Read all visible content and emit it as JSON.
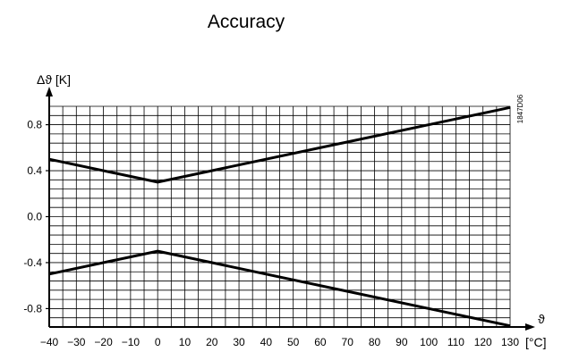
{
  "chart_data": {
    "type": "line",
    "title": "Accuracy",
    "ylabel": "Δϑ [K]",
    "xlabel": "ϑ",
    "xunit": "[°C]",
    "code": "1847D06",
    "xlim": [
      -40,
      130
    ],
    "ylim": [
      -0.96,
      0.96
    ],
    "x_ticks": [
      -40,
      -30,
      -20,
      -10,
      0,
      10,
      20,
      30,
      40,
      50,
      60,
      70,
      80,
      90,
      100,
      110,
      120,
      130
    ],
    "x_tick_labels": [
      "−40",
      "−30",
      "−20",
      "−10",
      "0",
      "10",
      "20",
      "30",
      "40",
      "50",
      "60",
      "70",
      "80",
      "90",
      "100",
      "110",
      "120",
      "130"
    ],
    "y_ticks": [
      0.8,
      0.4,
      0.0,
      -0.4,
      -0.8
    ],
    "y_tick_labels": [
      "0.8",
      "0.4",
      "0.0",
      "-0.4",
      "-0.8"
    ],
    "grid": true,
    "series": [
      {
        "x": [
          -40,
          0,
          130
        ],
        "y": [
          0.5,
          0.3,
          0.95
        ]
      },
      {
        "x": [
          -40,
          0,
          130
        ],
        "y": [
          -0.5,
          -0.3,
          -0.95
        ]
      }
    ]
  }
}
